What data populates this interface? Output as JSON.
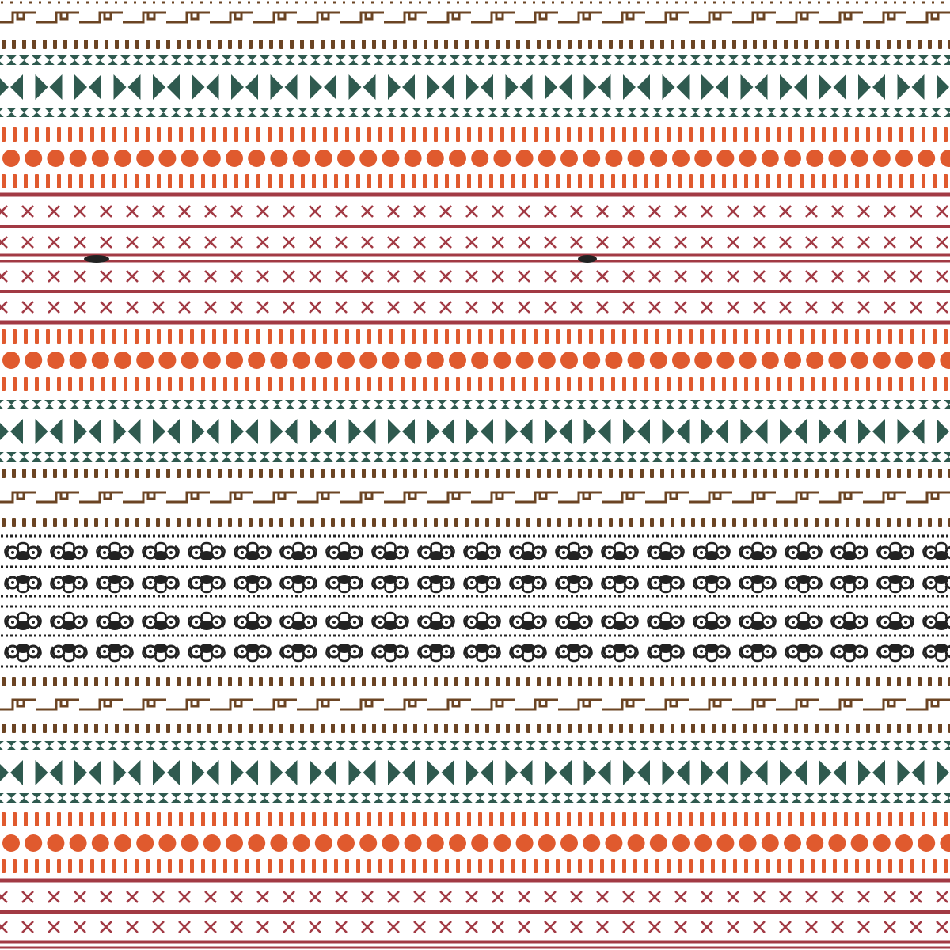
{
  "pattern": {
    "background": "#ffffff",
    "colors": {
      "brown": "#6b4423",
      "teal": "#2f5a4f",
      "orange": "#e05a2e",
      "red": "#a23a44",
      "black": "#222222"
    },
    "motifs": [
      "greek-key",
      "dashes",
      "hourglass-band",
      "bowtie",
      "bars",
      "circles",
      "x-crosses",
      "stripe",
      "scroll",
      "dots"
    ]
  }
}
